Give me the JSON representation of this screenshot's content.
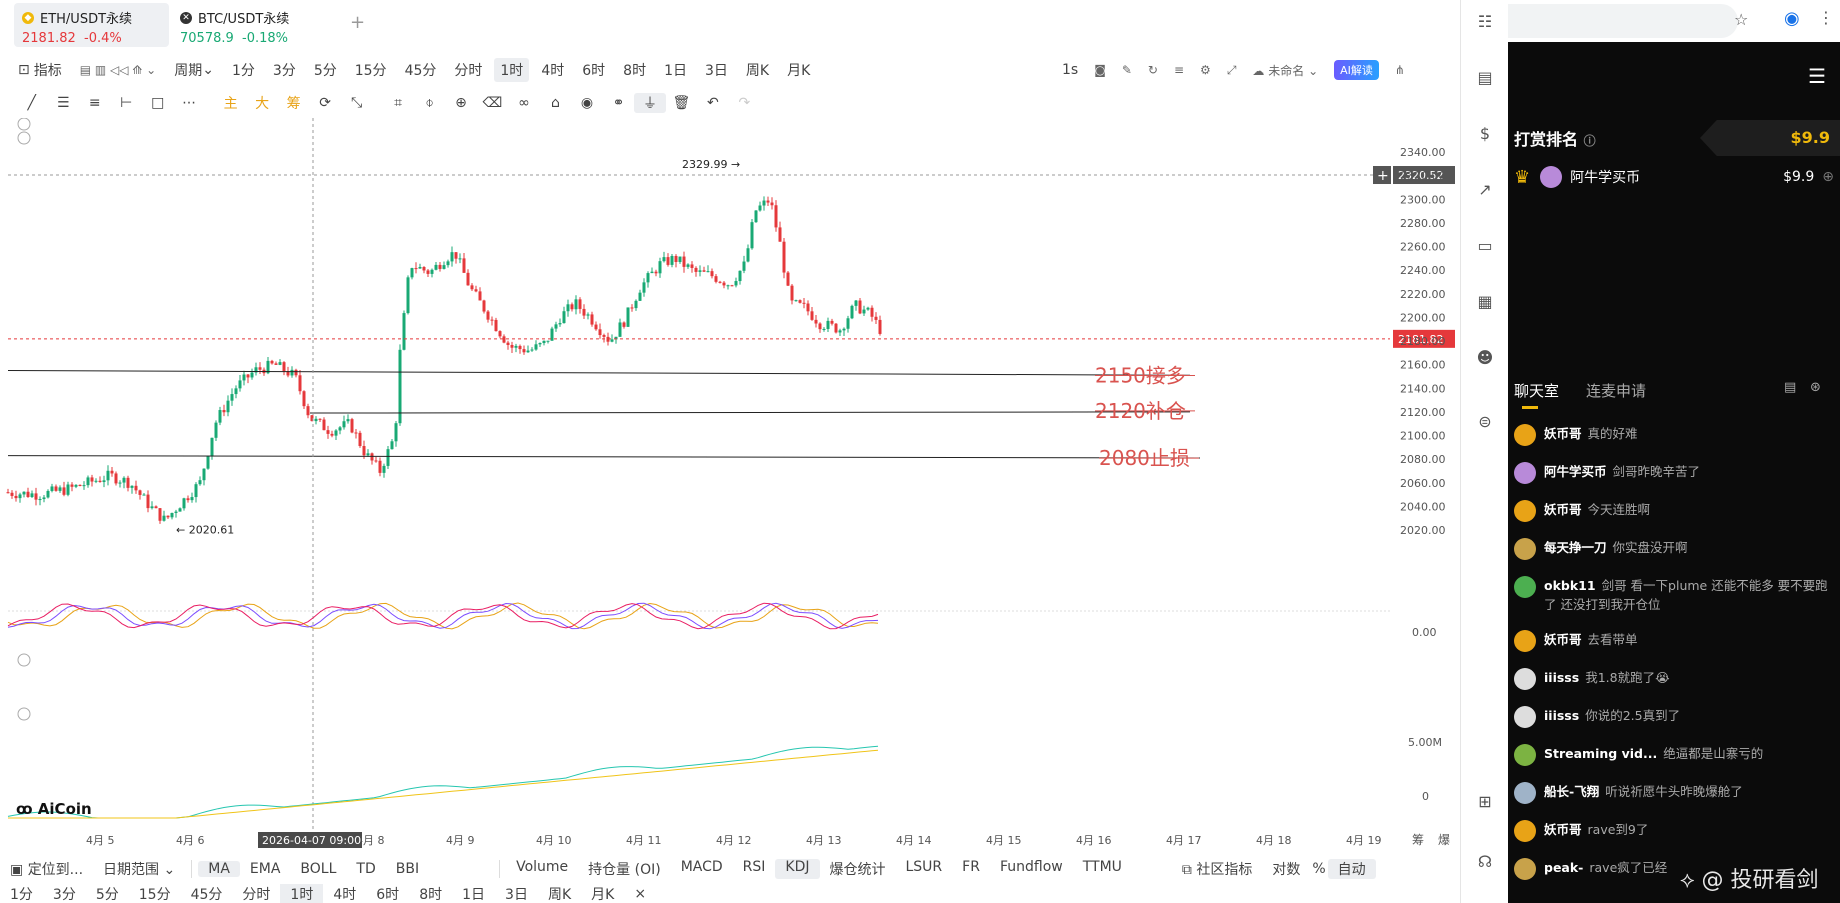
{
  "tabs": [
    {
      "symbol": "ETH/USDT永续",
      "price": "2181.82",
      "change": "-0.4%"
    },
    {
      "symbol": "BTC/USDT永续",
      "price": "70578.9",
      "change": "-0.18%"
    }
  ],
  "toolbar": {
    "indicator": "指标",
    "period": "周期",
    "timeframes": [
      "1分",
      "3分",
      "5分",
      "15分",
      "45分",
      "分时",
      "1时",
      "4时",
      "6时",
      "8时",
      "1日",
      "3日",
      "周K",
      "月K"
    ],
    "selected_tf": "1时",
    "seconds": "1s",
    "unnamed": "未命名",
    "ai": "AI解读"
  },
  "draw_tools": {
    "main": "主",
    "big": "大",
    "chip": "筹"
  },
  "chart": {
    "price_labels": [
      "2340.00",
      "2320.00",
      "2300.00",
      "2280.00",
      "2260.00",
      "2240.00",
      "2220.00",
      "2200.00",
      "2180.00",
      "2160.00",
      "2140.00",
      "2120.00",
      "2100.00",
      "2080.00",
      "2060.00",
      "2040.00",
      "2020.00"
    ],
    "crosshair_price": "2320.52",
    "last_price": "2181.82",
    "high_label": "2329.99",
    "low_label": "2020.61",
    "annotations": [
      "2150接多",
      "2120补仓",
      "2080止损"
    ],
    "osc_zero": "0.00",
    "vol_labels": [
      "5.00M",
      "0"
    ],
    "date_labels": [
      "4月 5",
      "4月 6",
      "4月 8",
      "4月 9",
      "4月 10",
      "4月 11",
      "4月 12",
      "4月 13",
      "4月 14",
      "4月 15",
      "4月 16",
      "4月 17",
      "4月 18",
      "4月 19"
    ],
    "crosshair_date": "2026-04-07 09:00",
    "logo": "AiCoin",
    "corner": [
      "筹",
      "爆"
    ]
  },
  "bottom": {
    "locate": "定位到...",
    "range": "日期范围",
    "indicators": [
      "MA",
      "EMA",
      "BOLL",
      "TD",
      "BBI"
    ],
    "sub": [
      "Volume",
      "持仓量 (OI)",
      "MACD",
      "RSI",
      "KDJ",
      "爆仓统计",
      "LSUR",
      "FR",
      "Fundflow",
      "TTMU"
    ],
    "community": "社区指标",
    "log": "对数",
    "pct": "%",
    "auto": "自动"
  },
  "tf_bar": [
    "1分",
    "3分",
    "5分",
    "15分",
    "45分",
    "分时",
    "1时",
    "4时",
    "6时",
    "8时",
    "1日",
    "3日",
    "周K",
    "月K"
  ],
  "side": {
    "rank_title": "打赏排名",
    "rank_total": "$9.9",
    "rank_user": "阿牛学买币",
    "rank_amount": "$9.9",
    "chat_tab": "聊天室",
    "mic_tab": "连麦申请",
    "messages": [
      {
        "user": "妖币哥",
        "text": "真的好难",
        "color": "#e8a317"
      },
      {
        "user": "阿牛学买币",
        "text": "剑哥昨晚辛苦了",
        "color": "#b88ad9"
      },
      {
        "user": "妖币哥",
        "text": "今天连胜啊",
        "color": "#e8a317"
      },
      {
        "user": "每天挣一刀",
        "text": "你实盘没开啊",
        "color": "#c8a24a"
      },
      {
        "user": "okbk11",
        "text": "剑哥 看一下plume 还能不能多 要不要跑了 还没打到我开仓位",
        "color": "#4caf50"
      },
      {
        "user": "妖币哥",
        "text": "去看带单",
        "color": "#e8a317"
      },
      {
        "user": "iiisss",
        "text": "我1.8就跑了😭",
        "color": "#ddd"
      },
      {
        "user": "iiisss",
        "text": "你说的2.5真到了",
        "color": "#ddd"
      },
      {
        "user": "Streaming vid...",
        "text": "绝逼都是山寨亏的",
        "color": "#7cb342"
      },
      {
        "user": "船长-飞翔",
        "text": "听说祈愿牛头昨晚爆舱了",
        "color": "#9fb3c8"
      },
      {
        "user": "妖币哥",
        "text": "rave到9了",
        "color": "#e8a317"
      },
      {
        "user": "peak-",
        "text": "rave疯了已经",
        "color": "#c8a24a"
      }
    ],
    "watermark": "@ 投研看剑"
  }
}
